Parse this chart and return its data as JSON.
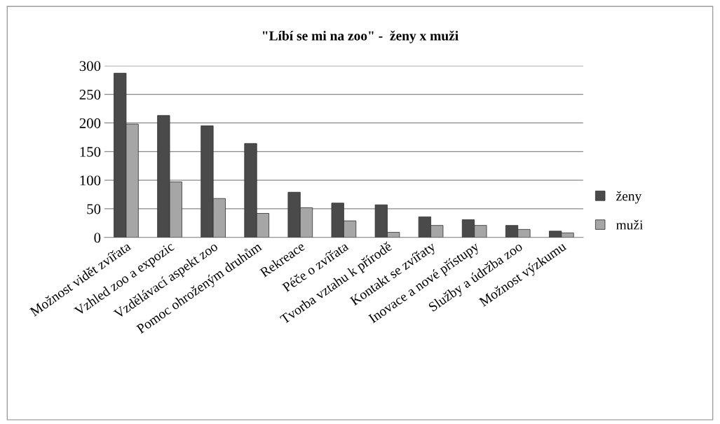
{
  "chart_data": {
    "type": "bar",
    "title": "\"Líbí se mi na zoo\" -  ženy x muži",
    "categories": [
      "Možnost vidět zvířata",
      "Vzhled zoo a expozic",
      "Vzdělávací aspekt zoo",
      "Pomoc ohroženým druhům",
      "Rekreace",
      "Péče o zvířata",
      "Tvorba vztahu k přírodě",
      "Kontakt se zvířaty",
      "Inovace a nové přístupy",
      "Služby a údržba zoo",
      "Možnost výzkumu"
    ],
    "series": [
      {
        "name": "ženy",
        "color": "#4a4a4a",
        "values": [
          287,
          213,
          195,
          164,
          79,
          60,
          57,
          36,
          31,
          21,
          11
        ]
      },
      {
        "name": "muži",
        "color": "#a6a6a6",
        "values": [
          198,
          97,
          68,
          42,
          52,
          29,
          9,
          21,
          21,
          14,
          8
        ]
      }
    ],
    "ylim": [
      0,
      300
    ],
    "yticks": [
      0,
      50,
      100,
      150,
      200,
      250,
      300
    ],
    "grid": "y",
    "legend": "right"
  }
}
